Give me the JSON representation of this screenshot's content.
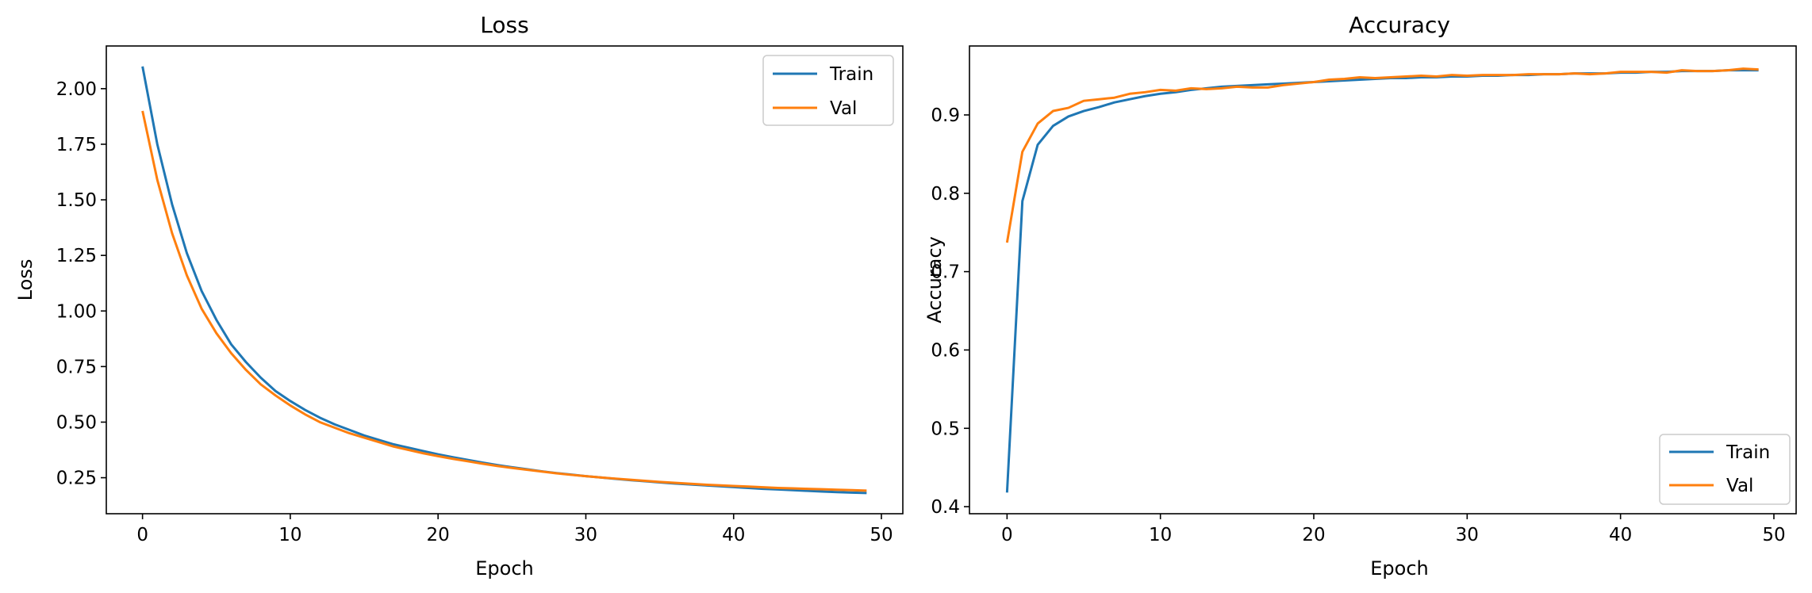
{
  "chart_data": [
    {
      "type": "line",
      "title": "Loss",
      "xlabel": "Epoch",
      "ylabel": "Loss",
      "xlim": [
        -2.45,
        51.45
      ],
      "ylim": [
        0.088,
        2.192
      ],
      "xticks": [
        0,
        10,
        20,
        30,
        40,
        50
      ],
      "yticks": [
        0.25,
        0.5,
        0.75,
        1.0,
        1.25,
        1.5,
        1.75,
        2.0
      ],
      "ytick_decimals": 2,
      "legend_loc": "top-right",
      "series": [
        {
          "name": "Train",
          "color": "#1f77b4",
          "x": [
            0,
            1,
            2,
            3,
            4,
            5,
            6,
            7,
            8,
            9,
            10,
            11,
            12,
            13,
            14,
            15,
            16,
            17,
            18,
            19,
            20,
            21,
            22,
            23,
            24,
            25,
            26,
            27,
            28,
            29,
            30,
            31,
            32,
            33,
            34,
            35,
            36,
            37,
            38,
            39,
            40,
            41,
            42,
            43,
            44,
            45,
            46,
            47,
            48,
            49
          ],
          "y": [
            2.1,
            1.75,
            1.48,
            1.26,
            1.09,
            0.96,
            0.85,
            0.77,
            0.7,
            0.64,
            0.595,
            0.555,
            0.52,
            0.49,
            0.465,
            0.44,
            0.42,
            0.4,
            0.385,
            0.37,
            0.355,
            0.342,
            0.33,
            0.318,
            0.307,
            0.297,
            0.288,
            0.279,
            0.271,
            0.264,
            0.257,
            0.251,
            0.245,
            0.239,
            0.234,
            0.229,
            0.224,
            0.22,
            0.216,
            0.212,
            0.208,
            0.204,
            0.2,
            0.197,
            0.194,
            0.191,
            0.188,
            0.185,
            0.183,
            0.181
          ]
        },
        {
          "name": "Val",
          "color": "#ff7f0e",
          "x": [
            0,
            1,
            2,
            3,
            4,
            5,
            6,
            7,
            8,
            9,
            10,
            11,
            12,
            13,
            14,
            15,
            16,
            17,
            18,
            19,
            20,
            21,
            22,
            23,
            24,
            25,
            26,
            27,
            28,
            29,
            30,
            31,
            32,
            33,
            34,
            35,
            36,
            37,
            38,
            39,
            40,
            41,
            42,
            43,
            44,
            45,
            46,
            47,
            48,
            49
          ],
          "y": [
            1.9,
            1.59,
            1.35,
            1.16,
            1.01,
            0.9,
            0.81,
            0.735,
            0.67,
            0.62,
            0.575,
            0.535,
            0.5,
            0.475,
            0.45,
            0.43,
            0.41,
            0.39,
            0.375,
            0.36,
            0.347,
            0.335,
            0.324,
            0.313,
            0.303,
            0.294,
            0.286,
            0.278,
            0.27,
            0.263,
            0.257,
            0.251,
            0.246,
            0.241,
            0.236,
            0.231,
            0.227,
            0.223,
            0.219,
            0.216,
            0.213,
            0.21,
            0.207,
            0.204,
            0.202,
            0.2,
            0.198,
            0.196,
            0.194,
            0.192
          ]
        }
      ]
    },
    {
      "type": "line",
      "title": "Accuracy",
      "xlabel": "Epoch",
      "ylabel": "Accuracy",
      "xlim": [
        -2.45,
        51.45
      ],
      "ylim": [
        0.391,
        0.988
      ],
      "xticks": [
        0,
        10,
        20,
        30,
        40,
        50
      ],
      "yticks": [
        0.4,
        0.5,
        0.6,
        0.7,
        0.8,
        0.9
      ],
      "ytick_decimals": 1,
      "legend_loc": "bottom-right",
      "series": [
        {
          "name": "Train",
          "color": "#1f77b4",
          "x": [
            0,
            1,
            2,
            3,
            4,
            5,
            6,
            7,
            8,
            9,
            10,
            11,
            12,
            13,
            14,
            15,
            16,
            17,
            18,
            19,
            20,
            21,
            22,
            23,
            24,
            25,
            26,
            27,
            28,
            29,
            30,
            31,
            32,
            33,
            34,
            35,
            36,
            37,
            38,
            39,
            40,
            41,
            42,
            43,
            44,
            45,
            46,
            47,
            48,
            49
          ],
          "y": [
            0.418,
            0.79,
            0.862,
            0.886,
            0.898,
            0.905,
            0.91,
            0.916,
            0.92,
            0.924,
            0.927,
            0.929,
            0.932,
            0.934,
            0.936,
            0.937,
            0.938,
            0.939,
            0.94,
            0.941,
            0.942,
            0.943,
            0.944,
            0.945,
            0.946,
            0.947,
            0.947,
            0.948,
            0.948,
            0.949,
            0.949,
            0.95,
            0.95,
            0.951,
            0.951,
            0.952,
            0.952,
            0.953,
            0.953,
            0.953,
            0.954,
            0.954,
            0.955,
            0.955,
            0.956,
            0.956,
            0.956,
            0.957,
            0.957,
            0.957
          ]
        },
        {
          "name": "Val",
          "color": "#ff7f0e",
          "x": [
            0,
            1,
            2,
            3,
            4,
            5,
            6,
            7,
            8,
            9,
            10,
            11,
            12,
            13,
            14,
            15,
            16,
            17,
            18,
            19,
            20,
            21,
            22,
            23,
            24,
            25,
            26,
            27,
            28,
            29,
            30,
            31,
            32,
            33,
            34,
            35,
            36,
            37,
            38,
            39,
            40,
            41,
            42,
            43,
            44,
            45,
            46,
            47,
            48,
            49
          ],
          "y": [
            0.737,
            0.853,
            0.889,
            0.905,
            0.909,
            0.918,
            0.92,
            0.922,
            0.927,
            0.929,
            0.932,
            0.931,
            0.934,
            0.933,
            0.934,
            0.936,
            0.935,
            0.935,
            0.938,
            0.94,
            0.942,
            0.945,
            0.946,
            0.948,
            0.947,
            0.948,
            0.949,
            0.95,
            0.949,
            0.951,
            0.95,
            0.951,
            0.951,
            0.951,
            0.952,
            0.952,
            0.952,
            0.953,
            0.952,
            0.953,
            0.955,
            0.955,
            0.955,
            0.954,
            0.957,
            0.956,
            0.956,
            0.957,
            0.959,
            0.958
          ]
        }
      ]
    }
  ]
}
